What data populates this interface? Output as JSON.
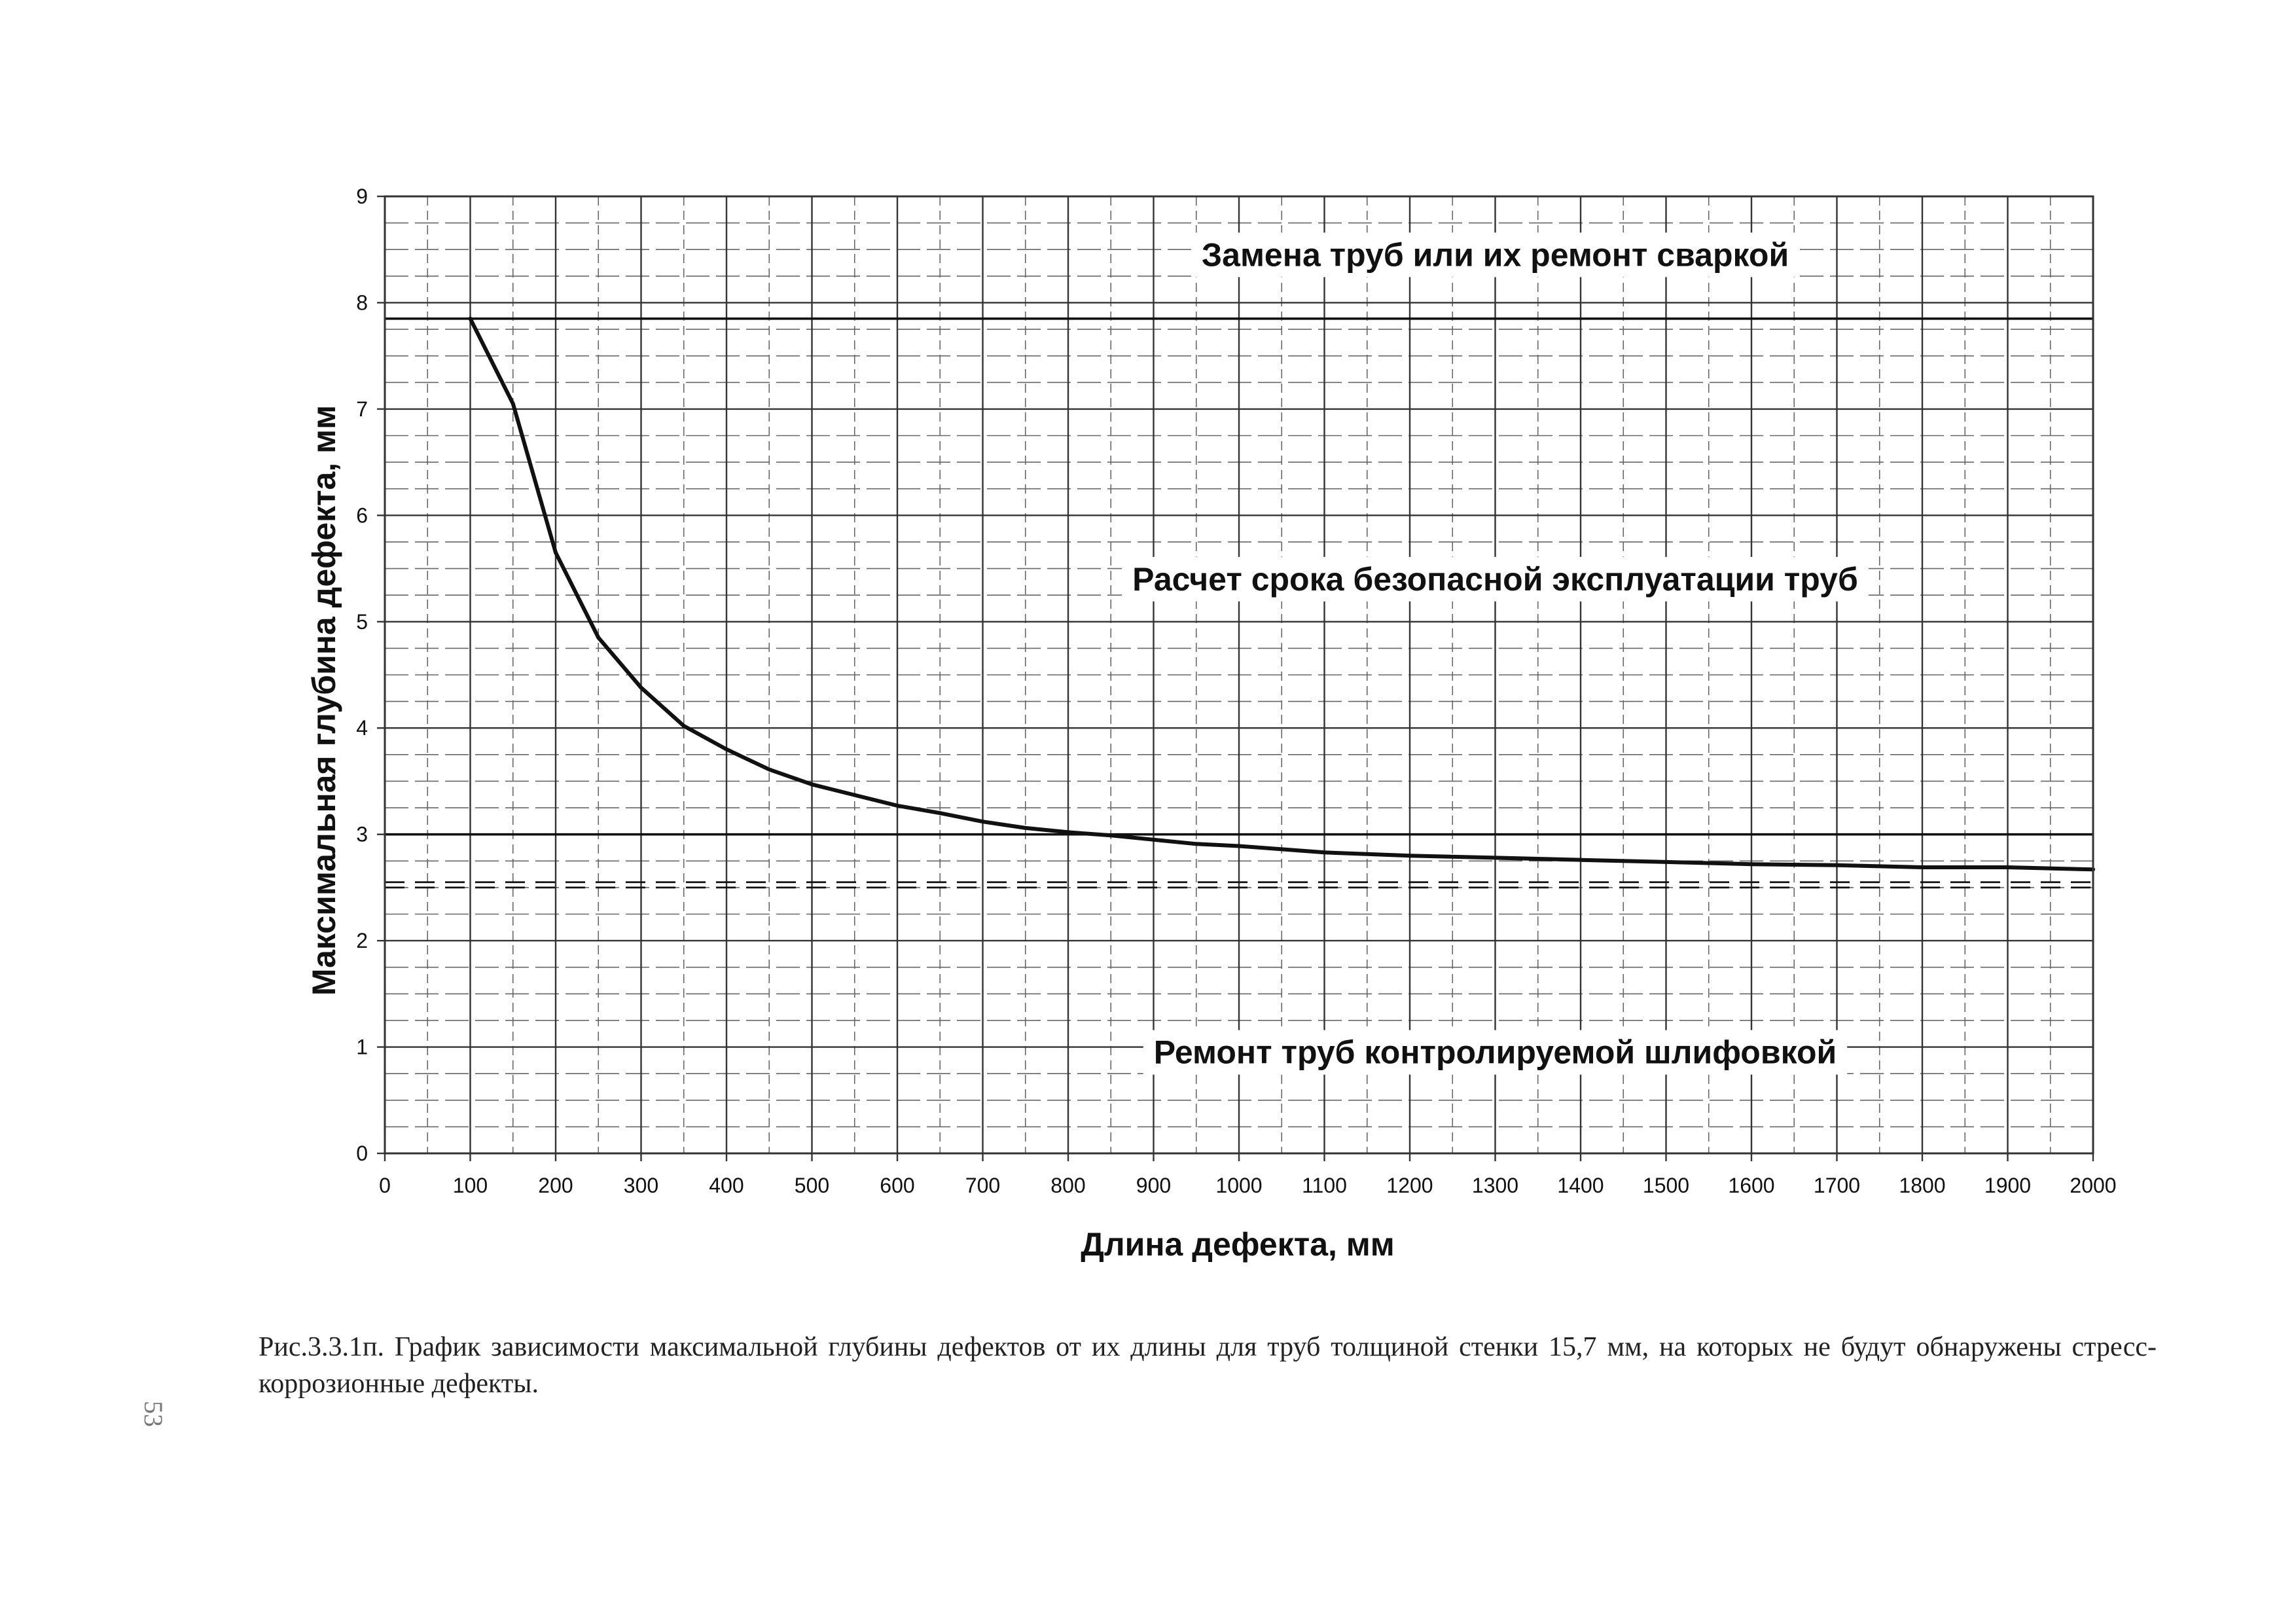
{
  "figure": {
    "caption": "Рис.3.3.1п. График зависимости максимальной глубины дефектов от их длины для труб толщиной стенки 15,7 мм, на которых не будут обнаружены стресс-коррозионные дефекты.",
    "page_mark": "53"
  },
  "chart_data": {
    "type": "line",
    "title": "",
    "xlabel": "Длина дефекта, мм",
    "ylabel": "Максимальная глубина дефекта, мм",
    "xlim": [
      0,
      2000
    ],
    "ylim": [
      0,
      9
    ],
    "x_ticks": [
      "0",
      "100",
      "200",
      "300",
      "400",
      "500",
      "600",
      "700",
      "800",
      "900",
      "1000",
      "1100",
      "1200",
      "1300",
      "1400",
      "1500",
      "1600",
      "1700",
      "1800",
      "1900",
      "2000"
    ],
    "y_ticks": [
      "0",
      "1",
      "2",
      "3",
      "4",
      "5",
      "6",
      "7",
      "8",
      "9"
    ],
    "grid": true,
    "minor_grid": true,
    "legend": "none",
    "series": [
      {
        "style": "solid-thick",
        "x": [
          100,
          150,
          200,
          250,
          300,
          350,
          400,
          450,
          500,
          550,
          600,
          650,
          700,
          750,
          800,
          850,
          900,
          950,
          1000,
          1100,
          1200,
          1300,
          1400,
          1500,
          1600,
          1700,
          1800,
          1900,
          2000
        ],
        "y": [
          7.85,
          7.05,
          5.65,
          4.85,
          4.38,
          4.02,
          3.8,
          3.61,
          3.47,
          3.37,
          3.27,
          3.2,
          3.12,
          3.06,
          3.02,
          2.99,
          2.95,
          2.91,
          2.89,
          2.83,
          2.8,
          2.78,
          2.76,
          2.74,
          2.72,
          2.71,
          2.69,
          2.69,
          2.67
        ]
      }
    ],
    "reference_lines": [
      {
        "y": 7.85,
        "style": "solid"
      },
      {
        "y": 3.0,
        "style": "solid"
      },
      {
        "y": 2.55,
        "style": "dashed"
      },
      {
        "y": 2.5,
        "style": "dashed"
      }
    ],
    "annotations": [
      {
        "text": "Замена труб или их ремонт сваркой",
        "x": 1300,
        "y": 8.45
      },
      {
        "text": "Расчет срока безопасной эксплуатации труб",
        "x": 1300,
        "y": 5.4
      },
      {
        "text": "Ремонт труб контролируемой шлифовкой",
        "x": 1300,
        "y": 0.95
      }
    ],
    "colors": {
      "curve": "#111111",
      "grid_major": "#333333",
      "grid_minor": "#666666",
      "text": "#111111"
    }
  }
}
